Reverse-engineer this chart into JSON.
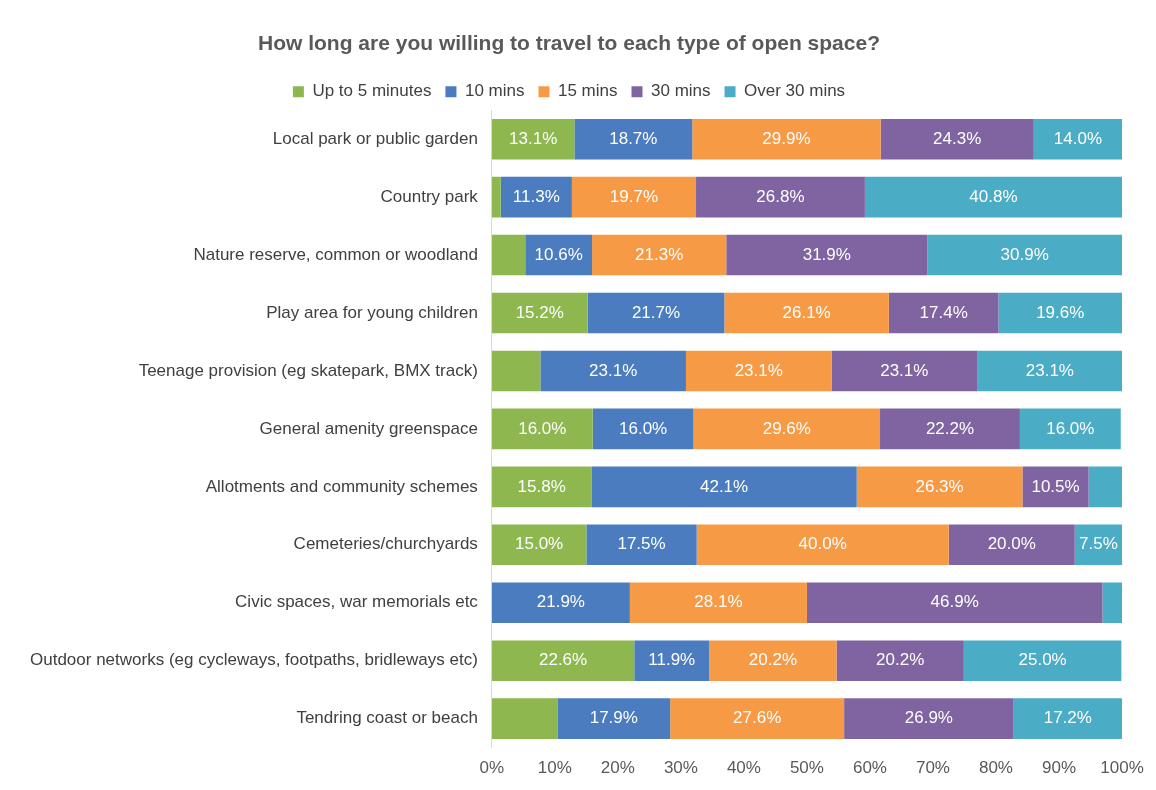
{
  "chart_data": {
    "type": "bar",
    "orientation": "horizontal",
    "stacked": true,
    "title": "How long are you willing to travel to each type of open space?",
    "categories": [
      "Local park or public garden",
      "Country park",
      "Nature reserve, common or woodland",
      "Play area for young children",
      "Teenage provision (eg skatepark, BMX track)",
      "General amenity greenspace",
      "Allotments and community schemes",
      "Cemeteries/churchyards",
      "Civic spaces, war memorials etc",
      "Outdoor networks (eg cycleways, footpaths, bridleways etc)",
      "Tendring coast or beach"
    ],
    "series": [
      {
        "name": "Up to 5 minutes",
        "color": "#8fb74f",
        "values": [
          13.1,
          1.4,
          5.3,
          15.2,
          7.7,
          16.0,
          15.8,
          15.0,
          0,
          22.6,
          10.4
        ],
        "value_labels": [
          "13.1%",
          null,
          null,
          "15.2%",
          null,
          "16.0%",
          "15.8%",
          "15.0%",
          null,
          "22.6%",
          null
        ]
      },
      {
        "name": "10 mins",
        "color": "#4a7cbf",
        "values": [
          18.7,
          11.3,
          10.6,
          21.7,
          23.1,
          16.0,
          42.1,
          17.5,
          21.9,
          11.9,
          17.9
        ],
        "value_labels": [
          "18.7%",
          "11.3%",
          "10.6%",
          "21.7%",
          "23.1%",
          "16.0%",
          "42.1%",
          "17.5%",
          "21.9%",
          "11.9%",
          "17.9%"
        ]
      },
      {
        "name": "15 mins",
        "color": "#f79a46",
        "values": [
          29.9,
          19.7,
          21.3,
          26.1,
          23.1,
          29.6,
          26.3,
          40.0,
          28.1,
          20.2,
          27.6
        ],
        "value_labels": [
          "29.9%",
          "19.7%",
          "21.3%",
          "26.1%",
          "23.1%",
          "29.6%",
          "26.3%",
          "40.0%",
          "28.1%",
          "20.2%",
          "27.6%"
        ]
      },
      {
        "name": "30 mins",
        "color": "#8064a2",
        "values": [
          24.3,
          26.8,
          31.9,
          17.4,
          23.1,
          22.2,
          10.5,
          20.0,
          46.9,
          20.2,
          26.9
        ],
        "value_labels": [
          "24.3%",
          "26.8%",
          "31.9%",
          "17.4%",
          "23.1%",
          "22.2%",
          "10.5%",
          "20.0%",
          "46.9%",
          "20.2%",
          "26.9%"
        ]
      },
      {
        "name": "Over 30 mins",
        "color": "#4bacc6",
        "values": [
          14.0,
          40.8,
          30.9,
          19.6,
          23.1,
          16.0,
          5.3,
          7.5,
          3.1,
          25.0,
          17.2
        ],
        "value_labels": [
          "14.0%",
          "40.8%",
          "30.9%",
          "19.6%",
          "23.1%",
          "16.0%",
          null,
          "7.5%",
          null,
          "25.0%",
          "17.2%"
        ]
      }
    ],
    "xlim": [
      0,
      100
    ],
    "xticks": [
      {
        "value": 0,
        "label": "0%"
      },
      {
        "value": 10,
        "label": "10%"
      },
      {
        "value": 20,
        "label": "20%"
      },
      {
        "value": 30,
        "label": "30%"
      },
      {
        "value": 40,
        "label": "40%"
      },
      {
        "value": 50,
        "label": "50%"
      },
      {
        "value": 60,
        "label": "60%"
      },
      {
        "value": 70,
        "label": "70%"
      },
      {
        "value": 80,
        "label": "80%"
      },
      {
        "value": 90,
        "label": "90%"
      },
      {
        "value": 100,
        "label": "100%"
      }
    ],
    "grid": false,
    "legend": "top"
  }
}
